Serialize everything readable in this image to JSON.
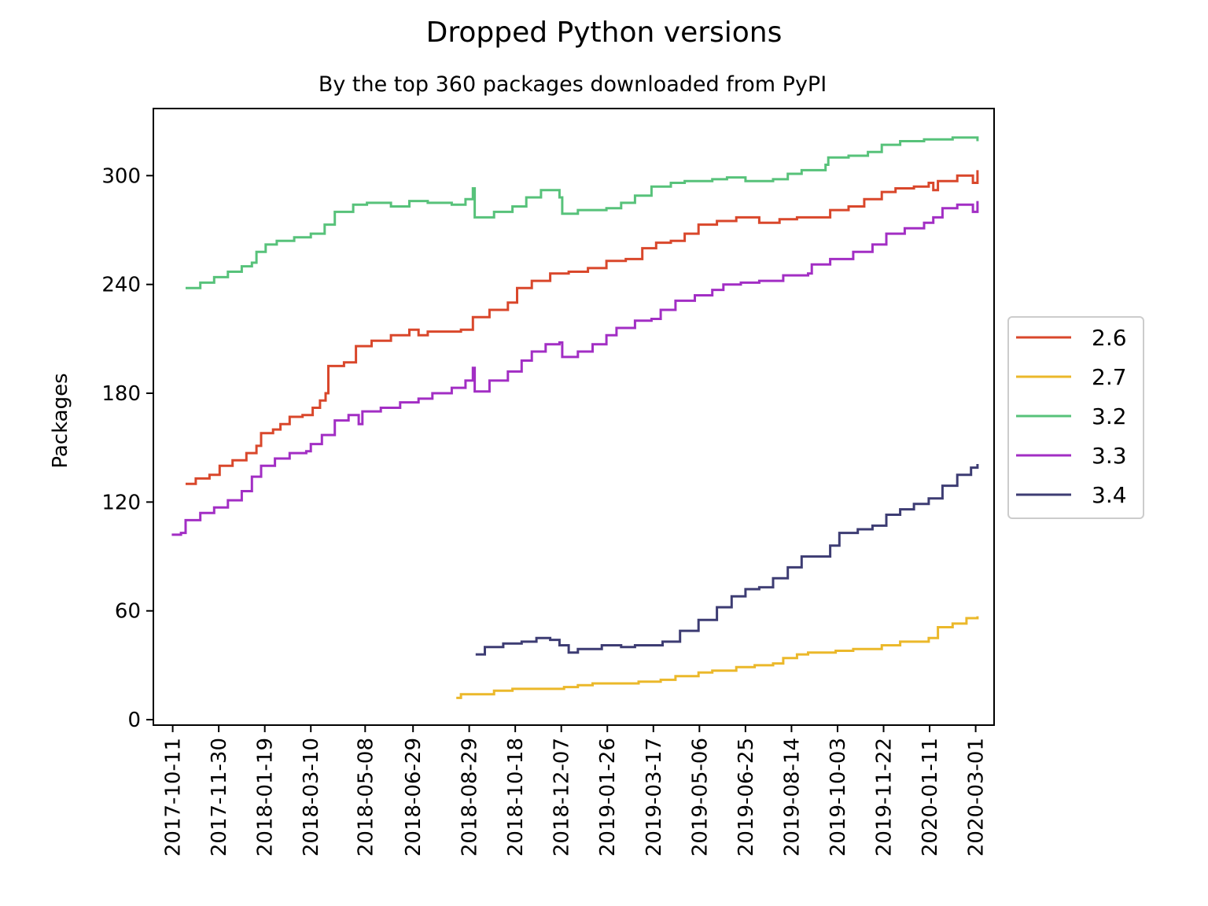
{
  "chart_data": {
    "type": "line",
    "title": "Dropped Python versions",
    "subtitle": "By the top 360 packages downloaded from PyPI",
    "xlabel": "",
    "ylabel": "Packages",
    "ylim": [
      -3,
      337
    ],
    "yticks": [
      0,
      60,
      120,
      180,
      240,
      300
    ],
    "xlim": [
      "2017-09-20",
      "2020-03-21"
    ],
    "xticks": [
      "2017-10-11",
      "2017-11-30",
      "2018-01-19",
      "2018-03-10",
      "2018-05-08",
      "2018-06-29",
      "2018-08-29",
      "2018-10-18",
      "2018-12-07",
      "2019-01-26",
      "2019-03-17",
      "2019-05-06",
      "2019-06-25",
      "2019-08-14",
      "2019-10-03",
      "2019-11-22",
      "2020-01-11",
      "2020-03-01"
    ],
    "grid": false,
    "legend_position": "center-right, outside plot",
    "series": [
      {
        "name": "2.6",
        "color": "#d9472b",
        "points": [
          [
            "2017-10-25",
            130
          ],
          [
            "2017-11-05",
            133
          ],
          [
            "2017-11-20",
            135
          ],
          [
            "2017-12-01",
            140
          ],
          [
            "2017-12-15",
            143
          ],
          [
            "2017-12-30",
            147
          ],
          [
            "2018-01-10",
            151
          ],
          [
            "2018-01-15",
            158
          ],
          [
            "2018-01-28",
            160
          ],
          [
            "2018-02-05",
            163
          ],
          [
            "2018-02-15",
            167
          ],
          [
            "2018-03-01",
            168
          ],
          [
            "2018-03-12",
            172
          ],
          [
            "2018-03-20",
            176
          ],
          [
            "2018-03-26",
            180
          ],
          [
            "2018-03-29",
            195
          ],
          [
            "2018-04-15",
            197
          ],
          [
            "2018-04-28",
            206
          ],
          [
            "2018-05-15",
            209
          ],
          [
            "2018-06-05",
            212
          ],
          [
            "2018-06-25",
            215
          ],
          [
            "2018-07-05",
            212
          ],
          [
            "2018-07-15",
            214
          ],
          [
            "2018-08-20",
            215
          ],
          [
            "2018-09-02",
            222
          ],
          [
            "2018-09-20",
            226
          ],
          [
            "2018-10-10",
            230
          ],
          [
            "2018-10-20",
            238
          ],
          [
            "2018-11-05",
            242
          ],
          [
            "2018-11-25",
            246
          ],
          [
            "2018-12-15",
            247
          ],
          [
            "2019-01-05",
            249
          ],
          [
            "2019-01-25",
            253
          ],
          [
            "2019-02-15",
            254
          ],
          [
            "2019-03-05",
            260
          ],
          [
            "2019-03-20",
            263
          ],
          [
            "2019-04-05",
            264
          ],
          [
            "2019-04-20",
            268
          ],
          [
            "2019-05-05",
            273
          ],
          [
            "2019-05-25",
            275
          ],
          [
            "2019-06-15",
            277
          ],
          [
            "2019-07-10",
            274
          ],
          [
            "2019-08-01",
            276
          ],
          [
            "2019-08-20",
            277
          ],
          [
            "2019-09-20",
            277
          ],
          [
            "2019-09-25",
            281
          ],
          [
            "2019-10-15",
            283
          ],
          [
            "2019-11-01",
            287
          ],
          [
            "2019-11-20",
            291
          ],
          [
            "2019-12-05",
            293
          ],
          [
            "2019-12-25",
            294
          ],
          [
            "2020-01-10",
            296
          ],
          [
            "2020-01-15",
            292
          ],
          [
            "2020-01-20",
            297
          ],
          [
            "2020-02-10",
            300
          ],
          [
            "2020-02-26",
            300
          ],
          [
            "2020-02-27",
            296
          ],
          [
            "2020-03-03",
            303
          ]
        ]
      },
      {
        "name": "2.7",
        "color": "#ebb82a",
        "points": [
          [
            "2018-08-15",
            12
          ],
          [
            "2018-08-20",
            14
          ],
          [
            "2018-09-10",
            14
          ],
          [
            "2018-09-25",
            16
          ],
          [
            "2018-10-15",
            17
          ],
          [
            "2018-12-08",
            17
          ],
          [
            "2018-12-10",
            18
          ],
          [
            "2018-12-25",
            19
          ],
          [
            "2019-01-10",
            20
          ],
          [
            "2019-02-15",
            20
          ],
          [
            "2019-03-01",
            21
          ],
          [
            "2019-03-25",
            22
          ],
          [
            "2019-04-10",
            24
          ],
          [
            "2019-05-05",
            26
          ],
          [
            "2019-05-20",
            27
          ],
          [
            "2019-06-15",
            29
          ],
          [
            "2019-07-05",
            30
          ],
          [
            "2019-07-25",
            31
          ],
          [
            "2019-08-05",
            34
          ],
          [
            "2019-08-20",
            36
          ],
          [
            "2019-09-01",
            37
          ],
          [
            "2019-10-01",
            38
          ],
          [
            "2019-10-20",
            39
          ],
          [
            "2019-11-20",
            41
          ],
          [
            "2019-12-10",
            43
          ],
          [
            "2020-01-10",
            45
          ],
          [
            "2020-01-20",
            51
          ],
          [
            "2020-02-05",
            53
          ],
          [
            "2020-02-20",
            56
          ],
          [
            "2020-03-03",
            57
          ]
        ]
      },
      {
        "name": "3.2",
        "color": "#57c27a",
        "points": [
          [
            "2017-10-25",
            238
          ],
          [
            "2017-11-10",
            241
          ],
          [
            "2017-11-25",
            244
          ],
          [
            "2017-12-10",
            247
          ],
          [
            "2017-12-25",
            250
          ],
          [
            "2018-01-05",
            252
          ],
          [
            "2018-01-10",
            258
          ],
          [
            "2018-01-20",
            262
          ],
          [
            "2018-02-01",
            264
          ],
          [
            "2018-02-20",
            266
          ],
          [
            "2018-03-10",
            268
          ],
          [
            "2018-03-25",
            273
          ],
          [
            "2018-04-05",
            280
          ],
          [
            "2018-04-25",
            284
          ],
          [
            "2018-05-10",
            285
          ],
          [
            "2018-06-05",
            283
          ],
          [
            "2018-06-25",
            286
          ],
          [
            "2018-07-15",
            285
          ],
          [
            "2018-08-10",
            284
          ],
          [
            "2018-08-25",
            287
          ],
          [
            "2018-09-02",
            293
          ],
          [
            "2018-09-04",
            277
          ],
          [
            "2018-09-25",
            280
          ],
          [
            "2018-10-15",
            283
          ],
          [
            "2018-10-30",
            288
          ],
          [
            "2018-11-15",
            292
          ],
          [
            "2018-12-05",
            288
          ],
          [
            "2018-12-08",
            279
          ],
          [
            "2018-12-25",
            281
          ],
          [
            "2019-01-25",
            282
          ],
          [
            "2019-02-10",
            285
          ],
          [
            "2019-02-25",
            289
          ],
          [
            "2019-03-15",
            294
          ],
          [
            "2019-04-05",
            296
          ],
          [
            "2019-04-20",
            297
          ],
          [
            "2019-05-20",
            298
          ],
          [
            "2019-06-05",
            299
          ],
          [
            "2019-06-25",
            297
          ],
          [
            "2019-07-25",
            298
          ],
          [
            "2019-08-10",
            301
          ],
          [
            "2019-08-25",
            303
          ],
          [
            "2019-09-20",
            306
          ],
          [
            "2019-09-23",
            310
          ],
          [
            "2019-10-15",
            311
          ],
          [
            "2019-11-05",
            313
          ],
          [
            "2019-11-20",
            317
          ],
          [
            "2019-12-10",
            319
          ],
          [
            "2020-01-05",
            320
          ],
          [
            "2020-01-25",
            320
          ],
          [
            "2020-02-05",
            321
          ],
          [
            "2020-02-25",
            321
          ],
          [
            "2020-03-03",
            319
          ]
        ]
      },
      {
        "name": "3.3",
        "color": "#a22ec4",
        "points": [
          [
            "2017-10-10",
            102
          ],
          [
            "2017-10-20",
            103
          ],
          [
            "2017-10-25",
            110
          ],
          [
            "2017-11-10",
            114
          ],
          [
            "2017-11-25",
            117
          ],
          [
            "2017-12-10",
            121
          ],
          [
            "2017-12-25",
            126
          ],
          [
            "2018-01-05",
            134
          ],
          [
            "2018-01-15",
            140
          ],
          [
            "2018-01-30",
            144
          ],
          [
            "2018-02-15",
            147
          ],
          [
            "2018-03-05",
            148
          ],
          [
            "2018-03-10",
            152
          ],
          [
            "2018-03-22",
            157
          ],
          [
            "2018-04-05",
            165
          ],
          [
            "2018-04-20",
            168
          ],
          [
            "2018-05-01",
            163
          ],
          [
            "2018-05-05",
            170
          ],
          [
            "2018-05-25",
            172
          ],
          [
            "2018-06-15",
            175
          ],
          [
            "2018-07-05",
            177
          ],
          [
            "2018-07-20",
            180
          ],
          [
            "2018-08-10",
            183
          ],
          [
            "2018-08-25",
            187
          ],
          [
            "2018-09-02",
            194
          ],
          [
            "2018-09-04",
            181
          ],
          [
            "2018-09-20",
            187
          ],
          [
            "2018-10-10",
            192
          ],
          [
            "2018-10-25",
            198
          ],
          [
            "2018-11-05",
            203
          ],
          [
            "2018-11-20",
            207
          ],
          [
            "2018-12-05",
            208
          ],
          [
            "2018-12-08",
            200
          ],
          [
            "2018-12-25",
            203
          ],
          [
            "2019-01-10",
            207
          ],
          [
            "2019-01-25",
            212
          ],
          [
            "2019-02-05",
            216
          ],
          [
            "2019-02-25",
            220
          ],
          [
            "2019-03-15",
            221
          ],
          [
            "2019-03-25",
            226
          ],
          [
            "2019-04-10",
            231
          ],
          [
            "2019-05-01",
            234
          ],
          [
            "2019-05-20",
            237
          ],
          [
            "2019-06-01",
            240
          ],
          [
            "2019-06-20",
            241
          ],
          [
            "2019-07-10",
            242
          ],
          [
            "2019-08-05",
            245
          ],
          [
            "2019-09-01",
            246
          ],
          [
            "2019-09-05",
            251
          ],
          [
            "2019-09-25",
            254
          ],
          [
            "2019-10-20",
            258
          ],
          [
            "2019-11-10",
            262
          ],
          [
            "2019-11-25",
            268
          ],
          [
            "2019-12-15",
            271
          ],
          [
            "2020-01-05",
            274
          ],
          [
            "2020-01-15",
            277
          ],
          [
            "2020-01-25",
            282
          ],
          [
            "2020-02-10",
            284
          ],
          [
            "2020-02-26",
            284
          ],
          [
            "2020-02-27",
            280
          ],
          [
            "2020-03-03",
            286
          ]
        ]
      },
      {
        "name": "3.4",
        "color": "#3d3c73",
        "points": [
          [
            "2018-09-05",
            36
          ],
          [
            "2018-09-15",
            40
          ],
          [
            "2018-10-05",
            42
          ],
          [
            "2018-10-25",
            43
          ],
          [
            "2018-11-10",
            45
          ],
          [
            "2018-11-25",
            44
          ],
          [
            "2018-12-05",
            41
          ],
          [
            "2018-12-15",
            37
          ],
          [
            "2018-12-25",
            39
          ],
          [
            "2019-01-20",
            41
          ],
          [
            "2019-02-10",
            40
          ],
          [
            "2019-02-25",
            41
          ],
          [
            "2019-03-20",
            41
          ],
          [
            "2019-03-27",
            43
          ],
          [
            "2019-04-15",
            49
          ],
          [
            "2019-05-05",
            55
          ],
          [
            "2019-05-25",
            62
          ],
          [
            "2019-06-10",
            68
          ],
          [
            "2019-06-25",
            72
          ],
          [
            "2019-07-10",
            73
          ],
          [
            "2019-07-25",
            78
          ],
          [
            "2019-08-10",
            84
          ],
          [
            "2019-08-25",
            90
          ],
          [
            "2019-09-15",
            90
          ],
          [
            "2019-09-25",
            96
          ],
          [
            "2019-10-05",
            103
          ],
          [
            "2019-10-25",
            105
          ],
          [
            "2019-11-10",
            107
          ],
          [
            "2019-11-25",
            113
          ],
          [
            "2019-12-10",
            116
          ],
          [
            "2019-12-25",
            119
          ],
          [
            "2020-01-10",
            122
          ],
          [
            "2020-01-25",
            129
          ],
          [
            "2020-02-10",
            135
          ],
          [
            "2020-02-25",
            139
          ],
          [
            "2020-03-03",
            141
          ]
        ]
      }
    ]
  }
}
